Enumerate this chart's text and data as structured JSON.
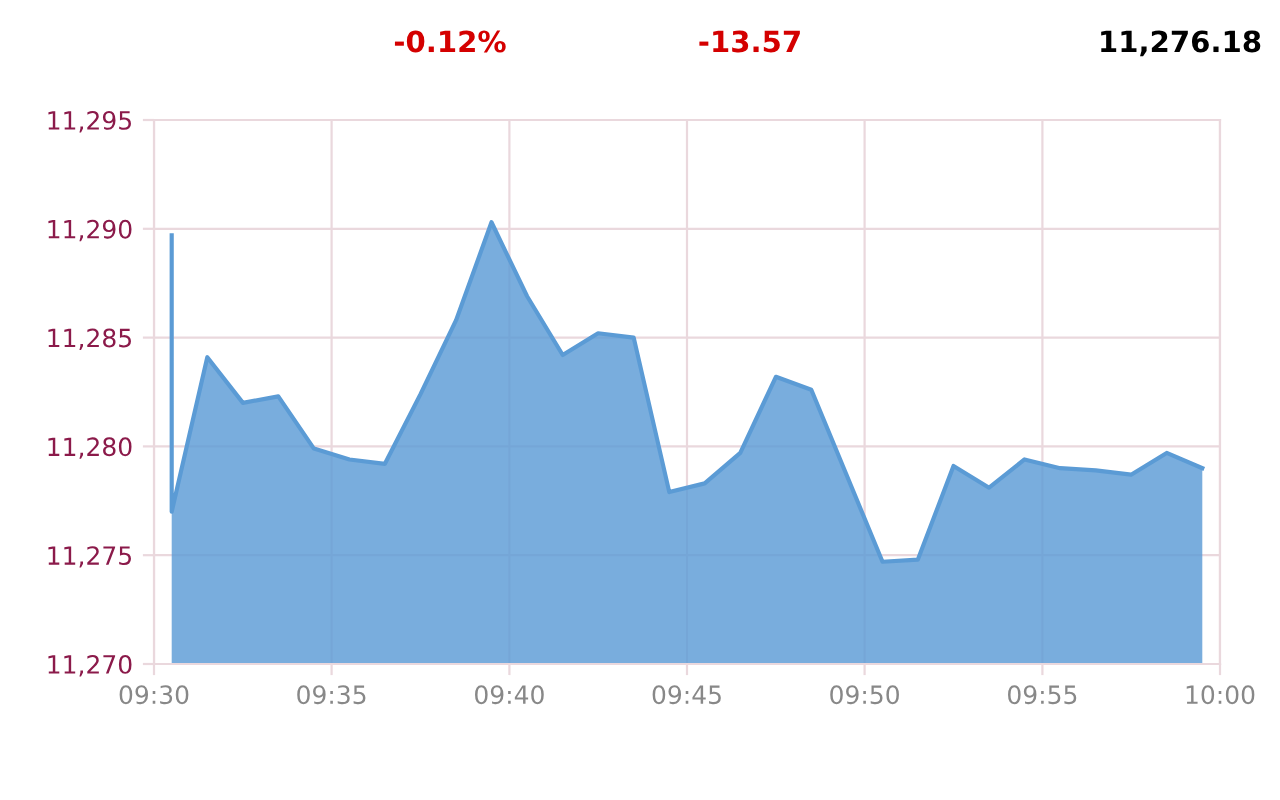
{
  "chart_data": {
    "type": "area",
    "annotations": [
      "-0.12%",
      "-13.57",
      "11,276.18"
    ],
    "x": [
      9.5083,
      9.5083,
      9.525,
      9.5417,
      9.5583,
      9.575,
      9.5917,
      9.6083,
      9.625,
      9.6417,
      9.6583,
      9.675,
      9.6917,
      9.7083,
      9.725,
      9.7417,
      9.7583,
      9.775,
      9.7917,
      9.8083,
      9.8417,
      9.8583,
      9.875,
      9.8917,
      9.9083,
      9.925,
      9.9417,
      9.9583,
      9.975,
      9.9917
    ],
    "series": [
      {
        "color": "#5b9bd5",
        "values": [
          11289.7,
          11277.0,
          11284.1,
          11282.0,
          11282.3,
          11279.9,
          11279.4,
          11279.2,
          11282.4,
          11285.8,
          11290.3,
          11286.9,
          11284.2,
          11285.2,
          11285.0,
          11277.9,
          11278.3,
          11279.7,
          11283.2,
          11282.6,
          11274.7,
          11274.8,
          11279.1,
          11278.1,
          11279.4,
          11279.0,
          11278.9,
          11278.7,
          11279.7,
          11279.0
        ]
      }
    ],
    "xlim": [
      9.5,
      10.0
    ],
    "xticks": [
      {
        "value": 9.5,
        "label": "09:30"
      },
      {
        "value": 9.5833,
        "label": "09:35"
      },
      {
        "value": 9.6667,
        "label": "09:40"
      },
      {
        "value": 9.75,
        "label": "09:45"
      },
      {
        "value": 9.8333,
        "label": "09:50"
      },
      {
        "value": 9.9167,
        "label": "09:55"
      },
      {
        "value": 10.0,
        "label": "10:00"
      }
    ],
    "ylim": [
      11270,
      11295
    ],
    "yticks": [
      {
        "value": 11270,
        "label": "11,270"
      },
      {
        "value": 11275,
        "label": "11,275"
      },
      {
        "value": 11280,
        "label": "11,280"
      },
      {
        "value": 11285,
        "label": "11,285"
      },
      {
        "value": 11290,
        "label": "11,290"
      },
      {
        "value": 11295,
        "label": "11,295"
      }
    ],
    "grid": true,
    "marker": "none",
    "line_style": "solid",
    "legend": false
  }
}
